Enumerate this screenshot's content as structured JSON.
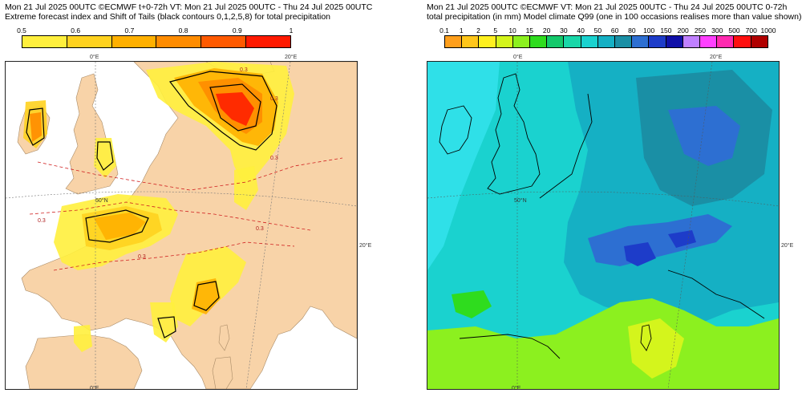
{
  "left": {
    "title_line1": "Mon 21 Jul 2025 00UTC ©ECMWF t+0-72h  VT: Mon 21 Jul 2025 00UTC - Thu 24 Jul 2025 00UTC",
    "title_line2": "Extreme forecast index and Shift of Tails (black contours 0,1,2,5,8) for total precipitation",
    "colorbar": {
      "labels": [
        "0.5",
        "0.6",
        "0.7",
        "0.8",
        "0.9",
        "1"
      ],
      "colors": [
        "#ffef3d",
        "#ffd21f",
        "#ffb000",
        "#ff8c00",
        "#ff5a00",
        "#ff1a00"
      ]
    },
    "map": {
      "labels": [
        "0°E",
        "20°E",
        "50°N",
        "20°E",
        "0°E",
        "0.3",
        "0.3",
        "0.3",
        "0.3",
        "0.3",
        "0.3"
      ],
      "land_color": "#f8d3a8",
      "sea_color": "#ffffff"
    }
  },
  "right": {
    "title_line1": "Mon 21 Jul 2025 00UTC ©ECMWF VT: Mon 21 Jul 2025 00UTC - Thu 24 Jul 2025 00UTC   0-72h",
    "title_line2": "total precipitation (in mm)  Model climate Q99 (one in 100 occasions realises more than value shown)",
    "colorbar": {
      "labels": [
        "0.1",
        "1",
        "2",
        "5",
        "10",
        "15",
        "20",
        "30",
        "40",
        "50",
        "60",
        "80",
        "100",
        "150",
        "200",
        "250",
        "300",
        "500",
        "700",
        "1000"
      ],
      "colors": [
        "#ff9f1c",
        "#ffc61a",
        "#fff01f",
        "#d4f51c",
        "#8cf01f",
        "#2fdc1e",
        "#14c96b",
        "#19d7a8",
        "#1ad2cf",
        "#15b0c4",
        "#1a8fa5",
        "#2d6fd2",
        "#1d3cc9",
        "#1010a8",
        "#c080ff",
        "#ff40ff",
        "#ff2ab0",
        "#ff1010",
        "#b00000"
      ]
    },
    "map": {
      "labels": [
        "0°E",
        "20°E",
        "50°N",
        "20°E",
        "0°E"
      ]
    }
  }
}
